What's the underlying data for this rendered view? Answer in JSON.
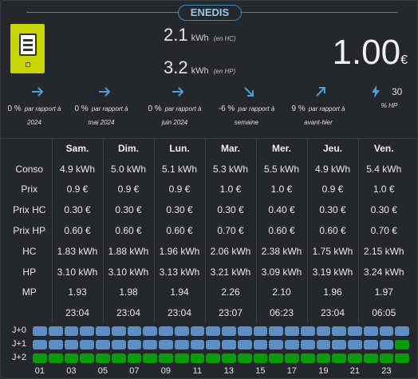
{
  "title": "ENEDIS",
  "icons": {
    "meter": "electric-meter-icon",
    "bolt": "bolt-icon"
  },
  "colors": {
    "accent": "#3b8ab8",
    "hc_blue": "#5d8fc4",
    "hp_green": "#0a9a0a"
  },
  "consumption": {
    "hc": {
      "value": "2.1",
      "unit": "kWh",
      "note": "(en HC)"
    },
    "hp": {
      "value": "3.2",
      "unit": "kWh",
      "note": "(en HP)"
    }
  },
  "cost": {
    "value": "1.00",
    "currency": "€"
  },
  "stats": [
    {
      "pct": "0 %",
      "label": "par rapport à",
      "sub": "2024",
      "arrow": "right"
    },
    {
      "pct": "0 %",
      "label": "par rapport à",
      "sub": "mai 2024",
      "arrow": "right"
    },
    {
      "pct": "0 %",
      "label": "par rapport à",
      "sub": "juin 2024",
      "arrow": "right"
    },
    {
      "pct": "-6 %",
      "label": "par rapport à",
      "sub": "semaine",
      "arrow": "down-right"
    },
    {
      "pct": "9 %",
      "label": "par rapport à",
      "sub": "avant-hier",
      "arrow": "up-right"
    },
    {
      "pct": "30",
      "label": "% HP",
      "sub": "",
      "arrow": "bolt"
    }
  ],
  "days": [
    "Sam.",
    "Dim.",
    "Lun.",
    "Mar.",
    "Mer.",
    "Jeu.",
    "Ven."
  ],
  "rows": [
    {
      "label": "Conso",
      "values": [
        "4.9 kWh",
        "5.0 kWh",
        "5.1 kWh",
        "5.3 kWh",
        "5.5 kWh",
        "4.9 kWh",
        "5.4 kWh"
      ]
    },
    {
      "label": "Prix",
      "values": [
        "0.9 €",
        "0.9 €",
        "0.9 €",
        "1.0 €",
        "1.0 €",
        "0.9 €",
        "1.0 €"
      ]
    },
    {
      "label": "Prix HC",
      "values": [
        "0.30 €",
        "0.30 €",
        "0.30 €",
        "0.30 €",
        "0.40 €",
        "0.30 €",
        "0.30 €"
      ]
    },
    {
      "label": "Prix HP",
      "values": [
        "0.60 €",
        "0.60 €",
        "0.60 €",
        "0.70 €",
        "0.60 €",
        "0.60 €",
        "0.70 €"
      ]
    },
    {
      "label": "HC",
      "values": [
        "1.83 kWh",
        "1.88 kWh",
        "1.96 kWh",
        "2.06 kWh",
        "2.38 kWh",
        "1.75 kWh",
        "2.15 kWh"
      ]
    },
    {
      "label": "HP",
      "values": [
        "3.10 kWh",
        "3.10 kWh",
        "3.13 kWh",
        "3.21 kWh",
        "3.09 kWh",
        "3.19 kWh",
        "3.24 kWh"
      ]
    },
    {
      "label": "MP",
      "values": [
        "1.93",
        "1.98",
        "1.94",
        "2.26",
        "2.10",
        "1.96",
        "1.97"
      ]
    },
    {
      "label": "",
      "values": [
        "23:04",
        "23:04",
        "23:04",
        "23:07",
        "06:23",
        "23:04",
        "06:05"
      ]
    }
  ],
  "tempo": {
    "labels": [
      "J+0",
      "J+1",
      "J+2"
    ],
    "hour_labels": [
      "01",
      "03",
      "05",
      "07",
      "09",
      "11",
      "13",
      "15",
      "17",
      "19",
      "21",
      "23"
    ],
    "days": [
      "BBBBBBBBBBBBBBBBBBBBBBBB",
      "BBBBBBBBBBBBBBBBBBBBBBBG",
      "GGGGGGGGGGGGGGGGGGGGGGGG"
    ]
  }
}
